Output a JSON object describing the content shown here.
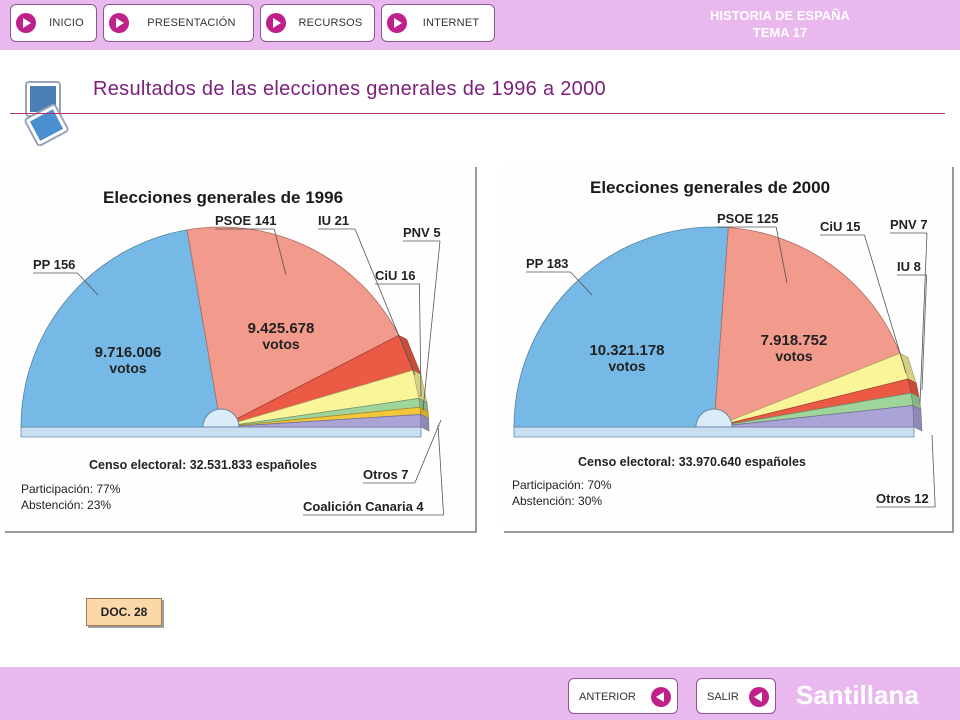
{
  "header": {
    "buttons": [
      {
        "label": "INICIO"
      },
      {
        "label": "PRESENTACIÓN"
      },
      {
        "label": "RECURSOS"
      },
      {
        "label": "INTERNET"
      }
    ],
    "brand_line1": "HISTORIA DE ESPAÑA",
    "brand_line2": "TEMA 17"
  },
  "page_title": "Resultados de las elecciones generales de 1996 a 2000",
  "doc_label": "DOC. 28",
  "footer": {
    "prev_label": "ANTERIOR",
    "exit_label": "SALIR",
    "publisher": "Santillana"
  },
  "chart_data": [
    {
      "type": "pie",
      "variant": "semicircle",
      "title": "Elecciones generales de 1996",
      "categories": [
        "PP",
        "PSOE",
        "IU",
        "CiU",
        "PNV",
        "Coalición Canaria",
        "Otros"
      ],
      "values": [
        156,
        141,
        21,
        16,
        5,
        4,
        7
      ],
      "colors": [
        "#76b9e6",
        "#f29a8b",
        "#ea5a45",
        "#fbf59a",
        "#9fd49a",
        "#f2c83a",
        "#a9a3d6"
      ],
      "labels": [
        "PP 156",
        "PSOE 141",
        "IU 21",
        "CiU 16",
        "PNV 5",
        "Coalición Canaria 4",
        "Otros 7"
      ],
      "inner_votes": [
        {
          "number": "9.716.006",
          "unit": "votos"
        },
        {
          "number": "9.425.678",
          "unit": "votos"
        }
      ],
      "census": "Censo electoral: 32.531.833 españoles",
      "participation": "Participación: 77%",
      "abstention": "Abstención: 23%"
    },
    {
      "type": "pie",
      "variant": "semicircle",
      "title": "Elecciones generales de 2000",
      "categories": [
        "PP",
        "PSOE",
        "CiU",
        "IU",
        "PNV",
        "Otros"
      ],
      "values": [
        183,
        125,
        15,
        8,
        7,
        12
      ],
      "colors": [
        "#76b9e6",
        "#f29a8b",
        "#fbf59a",
        "#ea5a45",
        "#9fd49a",
        "#a9a3d6"
      ],
      "labels": [
        "PP 183",
        "PSOE 125",
        "CiU 15",
        "IU 8",
        "PNV 7",
        "Otros 12"
      ],
      "inner_votes": [
        {
          "number": "10.321.178",
          "unit": "votos"
        },
        {
          "number": "7.918.752",
          "unit": "votos"
        }
      ],
      "census": "Censo electoral: 33.970.640 españoles",
      "participation": "Participación: 70%",
      "abstention": "Abstención: 30%"
    }
  ]
}
